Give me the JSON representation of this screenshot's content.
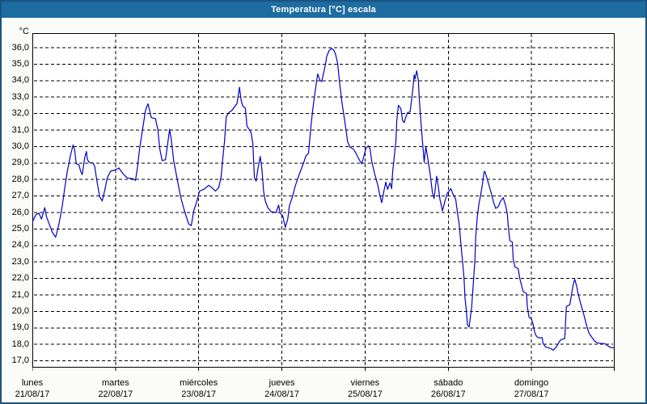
{
  "window": {
    "title": "Temperatura [°C] escala"
  },
  "colors": {
    "titlebar": "#1D6CA2",
    "window_border": "#1B5380",
    "background": "#FBFCF8",
    "plot_background": "#FFFFFF",
    "grid": "#000000",
    "line": "#0000C8",
    "axis_text": "#000000",
    "title_text": "#FFFFFF"
  },
  "chart_data": {
    "type": "line",
    "title": "Temperatura [°C] escala",
    "y_unit": "°C",
    "ylabel": "Temperatura",
    "ylim": [
      17.0,
      36.0
    ],
    "ytick_step": 1.0,
    "ytick_labels": [
      "36,0",
      "35,0",
      "34,0",
      "33,0",
      "32,0",
      "31,0",
      "30,0",
      "29,0",
      "28,0",
      "27,0",
      "26,0",
      "25,0",
      "24,0",
      "23,0",
      "22,0",
      "21,0",
      "20,0",
      "19,0",
      "18,0",
      "17,0"
    ],
    "grid": "dashed-black",
    "legend_position": "none",
    "x_axis": {
      "range_days": 7,
      "days": [
        {
          "name": "lunes",
          "date": "21/08/17"
        },
        {
          "name": "martes",
          "date": "22/08/17"
        },
        {
          "name": "miércoles",
          "date": "23/08/17"
        },
        {
          "name": "jueves",
          "date": "24/08/17"
        },
        {
          "name": "viernes",
          "date": "25/08/17"
        },
        {
          "name": "sábado",
          "date": "26/08/17"
        },
        {
          "name": "domingo",
          "date": "27/08/17"
        }
      ]
    },
    "series": [
      {
        "name": "Temperatura",
        "color": "#0000C8",
        "x_unit": "days_from_start",
        "points": [
          [
            0.0,
            25.4
          ],
          [
            0.03,
            25.75
          ],
          [
            0.05,
            25.9
          ],
          [
            0.08,
            25.95
          ],
          [
            0.11,
            25.6
          ],
          [
            0.15,
            26.3
          ],
          [
            0.17,
            25.75
          ],
          [
            0.21,
            25.2
          ],
          [
            0.24,
            24.8
          ],
          [
            0.28,
            24.5
          ],
          [
            0.32,
            25.3
          ],
          [
            0.36,
            26.4
          ],
          [
            0.39,
            27.5
          ],
          [
            0.42,
            28.5
          ],
          [
            0.46,
            29.5
          ],
          [
            0.49,
            30.1
          ],
          [
            0.51,
            29.75
          ],
          [
            0.52,
            29.25
          ],
          [
            0.53,
            28.95
          ],
          [
            0.56,
            28.9
          ],
          [
            0.58,
            28.5
          ],
          [
            0.6,
            28.3
          ],
          [
            0.63,
            29.35
          ],
          [
            0.65,
            29.7
          ],
          [
            0.66,
            29.25
          ],
          [
            0.68,
            29.05
          ],
          [
            0.73,
            29.0
          ],
          [
            0.75,
            28.8
          ],
          [
            0.78,
            27.8
          ],
          [
            0.81,
            26.95
          ],
          [
            0.84,
            26.7
          ],
          [
            0.87,
            27.35
          ],
          [
            0.9,
            28.1
          ],
          [
            0.94,
            28.5
          ],
          [
            1.0,
            28.6
          ],
          [
            1.04,
            28.7
          ],
          [
            1.09,
            28.35
          ],
          [
            1.14,
            28.1
          ],
          [
            1.21,
            28.05
          ],
          [
            1.24,
            27.95
          ],
          [
            1.26,
            28.6
          ],
          [
            1.29,
            29.9
          ],
          [
            1.33,
            31.2
          ],
          [
            1.36,
            32.2
          ],
          [
            1.39,
            32.6
          ],
          [
            1.41,
            32.2
          ],
          [
            1.43,
            31.75
          ],
          [
            1.48,
            31.7
          ],
          [
            1.51,
            31.0
          ],
          [
            1.53,
            29.9
          ],
          [
            1.56,
            29.15
          ],
          [
            1.6,
            29.2
          ],
          [
            1.62,
            29.9
          ],
          [
            1.65,
            31.05
          ],
          [
            1.67,
            30.4
          ],
          [
            1.7,
            29.1
          ],
          [
            1.75,
            27.8
          ],
          [
            1.78,
            27.0
          ],
          [
            1.82,
            26.25
          ],
          [
            1.85,
            25.75
          ],
          [
            1.88,
            25.3
          ],
          [
            1.91,
            25.2
          ],
          [
            1.94,
            26.1
          ],
          [
            1.97,
            26.55
          ],
          [
            2.01,
            27.3
          ],
          [
            2.06,
            27.4
          ],
          [
            2.12,
            27.65
          ],
          [
            2.16,
            27.5
          ],
          [
            2.2,
            27.3
          ],
          [
            2.24,
            27.5
          ],
          [
            2.27,
            28.2
          ],
          [
            2.29,
            29.3
          ],
          [
            2.31,
            30.3
          ],
          [
            2.33,
            31.8
          ],
          [
            2.36,
            32.05
          ],
          [
            2.4,
            32.2
          ],
          [
            2.43,
            32.4
          ],
          [
            2.46,
            32.6
          ],
          [
            2.49,
            33.6
          ],
          [
            2.51,
            32.8
          ],
          [
            2.53,
            32.45
          ],
          [
            2.56,
            32.35
          ],
          [
            2.58,
            31.25
          ],
          [
            2.61,
            31.0
          ],
          [
            2.63,
            30.85
          ],
          [
            2.65,
            30.2
          ],
          [
            2.67,
            28.1
          ],
          [
            2.69,
            27.9
          ],
          [
            2.71,
            28.6
          ],
          [
            2.74,
            29.4
          ],
          [
            2.76,
            28.6
          ],
          [
            2.78,
            27.3
          ],
          [
            2.8,
            26.7
          ],
          [
            2.83,
            26.3
          ],
          [
            2.87,
            26.05
          ],
          [
            2.93,
            26.0
          ],
          [
            2.96,
            26.45
          ],
          [
            2.98,
            25.95
          ],
          [
            3.01,
            25.8
          ],
          [
            3.04,
            25.1
          ],
          [
            3.07,
            25.6
          ],
          [
            3.09,
            26.4
          ],
          [
            3.13,
            27.0
          ],
          [
            3.16,
            27.6
          ],
          [
            3.19,
            28.05
          ],
          [
            3.23,
            28.6
          ],
          [
            3.26,
            29.0
          ],
          [
            3.29,
            29.45
          ],
          [
            3.32,
            29.6
          ],
          [
            3.35,
            31.3
          ],
          [
            3.37,
            32.2
          ],
          [
            3.39,
            33.0
          ],
          [
            3.41,
            33.7
          ],
          [
            3.43,
            34.4
          ],
          [
            3.46,
            34.0
          ],
          [
            3.48,
            33.95
          ],
          [
            3.5,
            34.45
          ],
          [
            3.52,
            34.9
          ],
          [
            3.54,
            35.5
          ],
          [
            3.57,
            35.85
          ],
          [
            3.6,
            35.95
          ],
          [
            3.63,
            35.8
          ],
          [
            3.65,
            35.5
          ],
          [
            3.67,
            35.05
          ],
          [
            3.69,
            34.05
          ],
          [
            3.72,
            32.75
          ],
          [
            3.76,
            31.4
          ],
          [
            3.79,
            30.3
          ],
          [
            3.82,
            29.95
          ],
          [
            3.86,
            29.85
          ],
          [
            3.89,
            29.6
          ],
          [
            3.93,
            29.2
          ],
          [
            3.96,
            28.95
          ],
          [
            3.99,
            29.5
          ],
          [
            4.01,
            29.9
          ],
          [
            4.04,
            30.05
          ],
          [
            4.06,
            29.85
          ],
          [
            4.08,
            29.1
          ],
          [
            4.11,
            28.45
          ],
          [
            4.15,
            27.7
          ],
          [
            4.18,
            27.0
          ],
          [
            4.2,
            26.6
          ],
          [
            4.23,
            27.4
          ],
          [
            4.25,
            27.85
          ],
          [
            4.27,
            27.4
          ],
          [
            4.3,
            27.8
          ],
          [
            4.32,
            27.45
          ],
          [
            4.33,
            28.4
          ],
          [
            4.35,
            29.35
          ],
          [
            4.37,
            30.3
          ],
          [
            4.38,
            31.5
          ],
          [
            4.4,
            32.5
          ],
          [
            4.43,
            32.3
          ],
          [
            4.45,
            31.6
          ],
          [
            4.47,
            31.45
          ],
          [
            4.49,
            31.8
          ],
          [
            4.51,
            32.05
          ],
          [
            4.54,
            32.1
          ],
          [
            4.56,
            32.85
          ],
          [
            4.58,
            33.8
          ],
          [
            4.59,
            34.35
          ],
          [
            4.6,
            34.1
          ],
          [
            4.62,
            34.6
          ],
          [
            4.64,
            34.0
          ],
          [
            4.65,
            33.0
          ],
          [
            4.67,
            31.6
          ],
          [
            4.69,
            30.3
          ],
          [
            4.71,
            29.05
          ],
          [
            4.73,
            30.0
          ],
          [
            4.75,
            29.4
          ],
          [
            4.78,
            28.4
          ],
          [
            4.81,
            27.2
          ],
          [
            4.83,
            26.85
          ],
          [
            4.86,
            28.2
          ],
          [
            4.88,
            27.6
          ],
          [
            4.9,
            26.8
          ],
          [
            4.93,
            26.1
          ],
          [
            4.96,
            26.7
          ],
          [
            4.99,
            27.2
          ],
          [
            5.01,
            27.3
          ],
          [
            5.03,
            27.45
          ],
          [
            5.05,
            27.2
          ],
          [
            5.09,
            26.8
          ],
          [
            5.11,
            26.0
          ],
          [
            5.13,
            25.3
          ],
          [
            5.15,
            24.2
          ],
          [
            5.17,
            23.1
          ],
          [
            5.19,
            22.0
          ],
          [
            5.2,
            20.85
          ],
          [
            5.22,
            19.9
          ],
          [
            5.23,
            19.2
          ],
          [
            5.25,
            19.05
          ],
          [
            5.28,
            20.2
          ],
          [
            5.3,
            21.6
          ],
          [
            5.32,
            23.1
          ],
          [
            5.33,
            24.5
          ],
          [
            5.35,
            25.8
          ],
          [
            5.37,
            26.55
          ],
          [
            5.39,
            27.1
          ],
          [
            5.41,
            27.7
          ],
          [
            5.43,
            28.45
          ],
          [
            5.44,
            28.5
          ],
          [
            5.47,
            28.0
          ],
          [
            5.51,
            27.3
          ],
          [
            5.54,
            26.7
          ],
          [
            5.57,
            26.25
          ],
          [
            5.6,
            26.35
          ],
          [
            5.63,
            26.7
          ],
          [
            5.66,
            26.9
          ],
          [
            5.69,
            26.4
          ],
          [
            5.71,
            25.9
          ],
          [
            5.72,
            25.25
          ],
          [
            5.74,
            24.3
          ],
          [
            5.77,
            24.2
          ],
          [
            5.78,
            23.2
          ],
          [
            5.8,
            22.7
          ],
          [
            5.84,
            22.6
          ],
          [
            5.86,
            22.0
          ],
          [
            5.88,
            21.6
          ],
          [
            5.9,
            21.2
          ],
          [
            5.94,
            21.1
          ],
          [
            5.95,
            20.3
          ],
          [
            5.97,
            19.65
          ],
          [
            6.0,
            19.55
          ],
          [
            6.02,
            19.2
          ],
          [
            6.04,
            18.7
          ],
          [
            6.06,
            18.5
          ],
          [
            6.08,
            18.4
          ],
          [
            6.13,
            18.4
          ],
          [
            6.14,
            18.05
          ],
          [
            6.17,
            17.85
          ],
          [
            6.2,
            17.8
          ],
          [
            6.23,
            17.75
          ],
          [
            6.26,
            17.65
          ],
          [
            6.3,
            17.85
          ],
          [
            6.34,
            18.2
          ],
          [
            6.36,
            18.3
          ],
          [
            6.4,
            18.35
          ],
          [
            6.42,
            20.3
          ],
          [
            6.46,
            20.4
          ],
          [
            6.48,
            20.95
          ],
          [
            6.5,
            21.6
          ],
          [
            6.52,
            21.95
          ],
          [
            6.54,
            21.6
          ],
          [
            6.56,
            21.1
          ],
          [
            6.59,
            20.5
          ],
          [
            6.63,
            19.8
          ],
          [
            6.66,
            19.2
          ],
          [
            6.69,
            18.7
          ],
          [
            6.73,
            18.4
          ],
          [
            6.76,
            18.2
          ],
          [
            6.79,
            18.1
          ],
          [
            6.84,
            18.05
          ],
          [
            6.88,
            18.05
          ],
          [
            6.92,
            17.9
          ],
          [
            6.96,
            17.8
          ],
          [
            6.99,
            17.8
          ]
        ]
      }
    ]
  }
}
